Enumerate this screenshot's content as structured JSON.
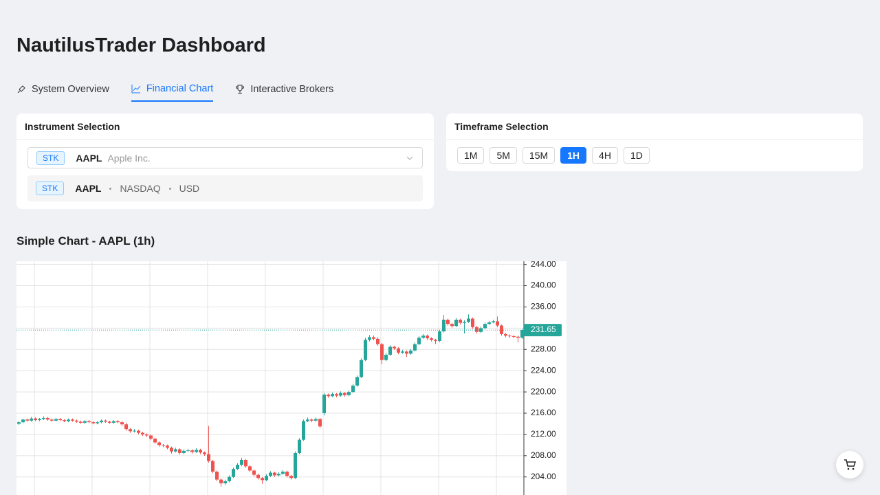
{
  "header": {
    "title": "NautilusTrader Dashboard"
  },
  "tabs": [
    {
      "label": "System Overview",
      "active": false
    },
    {
      "label": "Financial Chart",
      "active": true
    },
    {
      "label": "Interactive Brokers",
      "active": false
    }
  ],
  "instrument_panel": {
    "title": "Instrument Selection",
    "selected": {
      "type": "STK",
      "symbol": "AAPL",
      "name": "Apple Inc."
    },
    "options": [
      {
        "type": "STK",
        "symbol": "AAPL",
        "exchange": "NASDAQ",
        "currency": "USD"
      }
    ]
  },
  "timeframe_panel": {
    "title": "Timeframe Selection",
    "options": [
      {
        "label": "1M",
        "active": false
      },
      {
        "label": "5M",
        "active": false
      },
      {
        "label": "15M",
        "active": false
      },
      {
        "label": "1H",
        "active": true
      },
      {
        "label": "4H",
        "active": false
      },
      {
        "label": "1D",
        "active": false
      }
    ]
  },
  "chart_data": {
    "type": "candlestick",
    "title": "Simple Chart - AAPL (1h)",
    "up_color": "#26a69a",
    "down_color": "#ef5350",
    "grid": true,
    "ylim": [
      200.6,
      244.6
    ],
    "yticks": [
      {
        "value": 244,
        "label": "244.00"
      },
      {
        "value": 240,
        "label": "240.00"
      },
      {
        "value": 236,
        "label": "236.00"
      },
      {
        "value": 232,
        "label": "232.00"
      },
      {
        "value": 228,
        "label": "228.00"
      },
      {
        "value": 224,
        "label": "224.00"
      },
      {
        "value": 220,
        "label": "220.00"
      },
      {
        "value": 216,
        "label": "216.00"
      },
      {
        "value": 212,
        "label": "212.00"
      },
      {
        "value": 208,
        "label": "208.00"
      },
      {
        "value": 204,
        "label": "204.00"
      }
    ],
    "last_price": 231.65,
    "candles": [
      [
        214.0,
        214.5,
        213.8,
        214.3
      ],
      [
        214.3,
        215.0,
        214.1,
        214.8
      ],
      [
        214.8,
        215.0,
        214.4,
        214.6
      ],
      [
        214.6,
        215.3,
        214.4,
        215.0
      ],
      [
        215.0,
        215.2,
        214.5,
        214.7
      ],
      [
        214.7,
        215.1,
        214.5,
        214.9
      ],
      [
        214.9,
        215.4,
        214.7,
        215.1
      ],
      [
        215.1,
        215.3,
        214.6,
        214.8
      ],
      [
        214.8,
        215.0,
        214.4,
        214.6
      ],
      [
        214.6,
        215.1,
        214.4,
        214.9
      ],
      [
        214.9,
        215.1,
        214.5,
        214.7
      ],
      [
        214.7,
        214.9,
        214.3,
        214.5
      ],
      [
        214.5,
        215.0,
        214.3,
        214.8
      ],
      [
        214.8,
        215.0,
        214.4,
        214.6
      ],
      [
        214.6,
        214.8,
        214.2,
        214.4
      ],
      [
        214.4,
        214.6,
        214.0,
        214.2
      ],
      [
        214.2,
        214.7,
        214.0,
        214.5
      ],
      [
        214.5,
        214.7,
        214.1,
        214.3
      ],
      [
        214.3,
        214.5,
        213.9,
        214.1
      ],
      [
        214.1,
        214.5,
        213.9,
        214.3
      ],
      [
        214.3,
        214.8,
        214.1,
        214.6
      ],
      [
        214.6,
        214.8,
        214.2,
        214.4
      ],
      [
        214.4,
        214.6,
        214.0,
        214.2
      ],
      [
        214.2,
        214.7,
        214.0,
        214.5
      ],
      [
        214.5,
        214.7,
        214.1,
        214.3
      ],
      [
        214.3,
        214.5,
        213.6,
        213.9
      ],
      [
        213.9,
        214.2,
        212.7,
        213.0
      ],
      [
        213.0,
        213.2,
        212.3,
        212.6
      ],
      [
        212.6,
        213.0,
        212.4,
        212.7
      ],
      [
        212.7,
        212.9,
        212.0,
        212.3
      ],
      [
        212.3,
        212.5,
        211.7,
        212.0
      ],
      [
        212.0,
        212.2,
        211.5,
        211.8
      ],
      [
        211.8,
        212.0,
        210.9,
        211.2
      ],
      [
        211.2,
        211.4,
        210.2,
        210.5
      ],
      [
        210.5,
        210.7,
        209.7,
        210.0
      ],
      [
        210.0,
        210.2,
        209.6,
        209.9
      ],
      [
        209.9,
        210.1,
        209.2,
        209.5
      ],
      [
        209.5,
        209.7,
        208.4,
        208.8
      ],
      [
        208.8,
        209.5,
        208.6,
        209.2
      ],
      [
        209.2,
        209.4,
        208.2,
        208.5
      ],
      [
        208.5,
        209.2,
        208.3,
        208.9
      ],
      [
        208.9,
        209.3,
        208.7,
        209.0
      ],
      [
        209.0,
        209.2,
        208.4,
        208.7
      ],
      [
        208.7,
        209.4,
        208.5,
        209.1
      ],
      [
        209.1,
        209.3,
        208.3,
        208.6
      ],
      [
        208.6,
        208.8,
        208.0,
        208.3
      ],
      [
        208.3,
        213.6,
        206.7,
        207.0
      ],
      [
        207.0,
        207.2,
        204.7,
        205.0
      ],
      [
        205.0,
        205.2,
        203.2,
        203.5
      ],
      [
        203.5,
        203.7,
        202.2,
        202.8
      ],
      [
        202.8,
        203.5,
        202.5,
        203.2
      ],
      [
        203.2,
        204.3,
        203.0,
        204.0
      ],
      [
        204.0,
        205.8,
        203.8,
        205.5
      ],
      [
        205.5,
        206.6,
        205.3,
        206.3
      ],
      [
        206.3,
        207.6,
        206.0,
        207.2
      ],
      [
        207.2,
        207.4,
        205.7,
        206.0
      ],
      [
        206.0,
        206.2,
        204.9,
        205.2
      ],
      [
        205.2,
        205.4,
        204.1,
        204.4
      ],
      [
        204.4,
        204.6,
        203.5,
        203.8
      ],
      [
        203.8,
        204.0,
        202.7,
        203.4
      ],
      [
        203.4,
        204.5,
        203.2,
        204.2
      ],
      [
        204.2,
        205.1,
        204.0,
        204.8
      ],
      [
        204.8,
        205.0,
        204.0,
        204.3
      ],
      [
        204.3,
        204.9,
        204.1,
        204.6
      ],
      [
        204.6,
        205.3,
        204.4,
        205.0
      ],
      [
        205.0,
        205.2,
        203.9,
        204.2
      ],
      [
        204.2,
        204.4,
        203.5,
        203.8
      ],
      [
        203.8,
        208.8,
        203.6,
        208.5
      ],
      [
        208.5,
        211.3,
        208.3,
        211.0
      ],
      [
        211.0,
        214.8,
        210.8,
        214.5
      ],
      [
        214.5,
        215.2,
        214.3,
        214.8
      ],
      [
        214.8,
        215.0,
        214.3,
        214.6
      ],
      [
        214.6,
        215.2,
        214.4,
        214.9
      ],
      [
        214.9,
        215.1,
        213.2,
        213.5
      ],
      [
        216.0,
        219.8,
        215.6,
        219.5
      ],
      [
        219.5,
        219.7,
        218.9,
        219.2
      ],
      [
        219.2,
        219.9,
        219.0,
        219.6
      ],
      [
        219.6,
        219.8,
        219.0,
        219.3
      ],
      [
        219.3,
        220.1,
        219.1,
        219.8
      ],
      [
        219.8,
        220.0,
        219.1,
        219.4
      ],
      [
        219.4,
        220.3,
        219.2,
        220.0
      ],
      [
        220.0,
        221.5,
        219.8,
        221.2
      ],
      [
        221.2,
        223.1,
        221.0,
        222.8
      ],
      [
        222.8,
        226.3,
        222.6,
        226.0
      ],
      [
        226.0,
        230.2,
        225.8,
        229.8
      ],
      [
        229.8,
        230.7,
        229.5,
        230.3
      ],
      [
        230.3,
        230.6,
        229.7,
        230.0
      ],
      [
        230.0,
        230.3,
        228.7,
        229.0
      ],
      [
        229.0,
        229.2,
        225.2,
        226.0
      ],
      [
        226.0,
        227.3,
        225.8,
        227.0
      ],
      [
        227.0,
        228.8,
        226.8,
        228.5
      ],
      [
        228.5,
        228.7,
        227.9,
        228.2
      ],
      [
        228.2,
        228.4,
        227.1,
        227.4
      ],
      [
        227.4,
        227.9,
        227.2,
        227.6
      ],
      [
        227.6,
        227.8,
        226.6,
        227.2
      ],
      [
        227.2,
        228.1,
        227.0,
        227.8
      ],
      [
        227.8,
        229.3,
        227.6,
        229.0
      ],
      [
        229.0,
        230.5,
        228.8,
        230.2
      ],
      [
        230.2,
        230.9,
        230.0,
        230.6
      ],
      [
        230.6,
        230.8,
        229.8,
        230.1
      ],
      [
        230.1,
        230.3,
        229.5,
        229.8
      ],
      [
        229.8,
        230.0,
        229.0,
        229.6
      ],
      [
        229.6,
        231.7,
        229.4,
        231.4
      ],
      [
        231.4,
        234.5,
        231.2,
        233.6
      ],
      [
        233.6,
        233.8,
        232.5,
        232.8
      ],
      [
        232.8,
        233.0,
        232.1,
        232.4
      ],
      [
        232.4,
        233.9,
        232.2,
        233.6
      ],
      [
        233.6,
        233.8,
        232.7,
        233.0
      ],
      [
        233.0,
        233.5,
        231.0,
        233.2
      ],
      [
        233.2,
        234.6,
        233.0,
        233.8
      ],
      [
        233.8,
        234.0,
        231.9,
        232.2
      ],
      [
        232.2,
        232.4,
        231.0,
        231.3
      ],
      [
        231.3,
        232.3,
        231.1,
        232.0
      ],
      [
        232.0,
        233.1,
        231.8,
        232.8
      ],
      [
        232.8,
        233.4,
        232.6,
        233.1
      ],
      [
        233.1,
        233.6,
        232.9,
        233.3
      ],
      [
        233.3,
        234.2,
        232.2,
        232.5
      ],
      [
        232.5,
        232.7,
        230.6,
        230.9
      ],
      [
        230.9,
        231.1,
        230.3,
        230.6
      ],
      [
        230.6,
        230.8,
        230.2,
        230.5
      ],
      [
        230.5,
        230.7,
        230.1,
        230.4
      ],
      [
        230.4,
        230.6,
        229.3,
        230.2
      ],
      [
        230.2,
        231.9,
        230.0,
        231.65
      ]
    ]
  }
}
